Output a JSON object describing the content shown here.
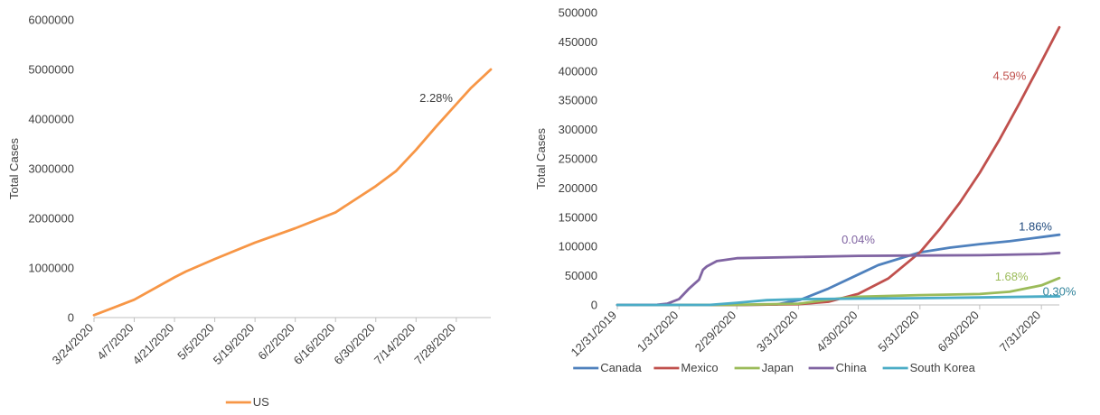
{
  "chart_data": [
    {
      "type": "line",
      "xlabel": "",
      "ylabel": "Total Cases",
      "ylim": [
        0,
        6000000
      ],
      "yticks": [
        "0",
        "1000000",
        "2000000",
        "3000000",
        "4000000",
        "5000000",
        "6000000"
      ],
      "xticks": [
        "3/24/2020",
        "4/7/2020",
        "4/21/2020",
        "5/5/2020",
        "5/19/2020",
        "6/2/2020",
        "6/16/2020",
        "6/30/2020",
        "7/14/2020",
        "7/28/2020"
      ],
      "xlim": [
        "3/24/2020",
        "8/9/2020"
      ],
      "grid": false,
      "legend": "bottom",
      "series": [
        {
          "name": "US",
          "color": "#F79646",
          "x": [
            "3/24/2020",
            "4/7/2020",
            "4/21/2020",
            "4/25/2020",
            "5/5/2020",
            "5/19/2020",
            "6/2/2020",
            "6/16/2020",
            "6/30/2020",
            "7/7/2020",
            "7/14/2020",
            "7/21/2020",
            "7/28/2020",
            "8/2/2020",
            "8/9/2020"
          ],
          "values": [
            50000,
            360000,
            810000,
            930000,
            1180000,
            1510000,
            1800000,
            2120000,
            2650000,
            2950000,
            3380000,
            3850000,
            4300000,
            4620000,
            5000000
          ]
        }
      ],
      "annotations": [
        {
          "text": "2.28%",
          "x": "7/21/2020",
          "y": 4350000,
          "color": "#404040"
        }
      ]
    },
    {
      "type": "line",
      "xlabel": "",
      "ylabel": "Total Cases",
      "ylim": [
        0,
        500000
      ],
      "yticks": [
        "0",
        "50000",
        "100000",
        "150000",
        "200000",
        "250000",
        "300000",
        "350000",
        "400000",
        "450000",
        "500000"
      ],
      "xticks": [
        "12/31/2019",
        "1/31/2020",
        "2/29/2020",
        "3/31/2020",
        "4/30/2020",
        "5/31/2020",
        "6/30/2020",
        "7/31/2020"
      ],
      "xlim": [
        "12/31/2019",
        "8/9/2020"
      ],
      "grid": false,
      "legend": "bottom",
      "series": [
        {
          "name": "Canada",
          "color": "#4F81BD",
          "x": [
            "12/31/2019",
            "3/1/2020",
            "3/20/2020",
            "4/1/2020",
            "4/15/2020",
            "4/30/2020",
            "5/10/2020",
            "5/31/2020",
            "6/15/2020",
            "6/30/2020",
            "7/15/2020",
            "7/31/2020",
            "8/9/2020"
          ],
          "values": [
            0,
            0,
            800,
            9000,
            28000,
            52000,
            68000,
            90000,
            98000,
            104000,
            109000,
            116000,
            120000
          ]
        },
        {
          "name": "Mexico",
          "color": "#C0504D",
          "x": [
            "12/31/2019",
            "3/1/2020",
            "3/31/2020",
            "4/15/2020",
            "4/30/2020",
            "5/15/2020",
            "5/31/2020",
            "6/10/2020",
            "6/20/2020",
            "6/30/2020",
            "7/10/2020",
            "7/20/2020",
            "7/31/2020",
            "8/9/2020"
          ],
          "values": [
            0,
            0,
            1200,
            5400,
            19000,
            45000,
            90000,
            130000,
            175000,
            226000,
            283000,
            345000,
            416000,
            475000
          ]
        },
        {
          "name": "Japan",
          "color": "#9BBB59",
          "x": [
            "12/31/2019",
            "1/31/2020",
            "2/29/2020",
            "3/31/2020",
            "4/20/2020",
            "4/30/2020",
            "5/31/2020",
            "6/30/2020",
            "7/15/2020",
            "7/31/2020",
            "8/9/2020"
          ],
          "values": [
            0,
            20,
            240,
            2200,
            11000,
            14000,
            16800,
            18600,
            22500,
            33500,
            46000
          ]
        },
        {
          "name": "China",
          "color": "#8064A2",
          "x": [
            "12/31/2019",
            "1/20/2020",
            "1/25/2020",
            "1/31/2020",
            "2/5/2020",
            "2/10/2020",
            "2/12/2020",
            "2/14/2020",
            "2/19/2020",
            "2/29/2020",
            "3/31/2020",
            "4/30/2020",
            "5/31/2020",
            "6/30/2020",
            "7/31/2020",
            "8/9/2020"
          ],
          "values": [
            0,
            300,
            2000,
            10000,
            28000,
            43000,
            60000,
            66000,
            75000,
            80000,
            82000,
            84000,
            84500,
            85000,
            87000,
            89000
          ]
        },
        {
          "name": "South Korea",
          "color": "#4BACC6",
          "x": [
            "12/31/2019",
            "2/15/2020",
            "2/29/2020",
            "3/15/2020",
            "3/31/2020",
            "4/30/2020",
            "5/31/2020",
            "6/30/2020",
            "7/31/2020",
            "8/9/2020"
          ],
          "values": [
            0,
            30,
            3700,
            8200,
            9800,
            10800,
            11500,
            12800,
            14300,
            14600
          ]
        }
      ],
      "annotations": [
        {
          "text": "4.59%",
          "x": "7/15/2020",
          "y": 385000,
          "color": "#C0504D"
        },
        {
          "text": "1.86%",
          "x": "7/28/2020",
          "y": 127000,
          "color": "#1F497D"
        },
        {
          "text": "0.04%",
          "x": "4/30/2020",
          "y": 105000,
          "color": "#8064A2"
        },
        {
          "text": "1.68%",
          "x": "7/16/2020",
          "y": 42000,
          "color": "#9BBB59"
        },
        {
          "text": "0.30%",
          "x": "8/9/2020",
          "y": 16000,
          "color": "#31849B"
        }
      ]
    }
  ]
}
